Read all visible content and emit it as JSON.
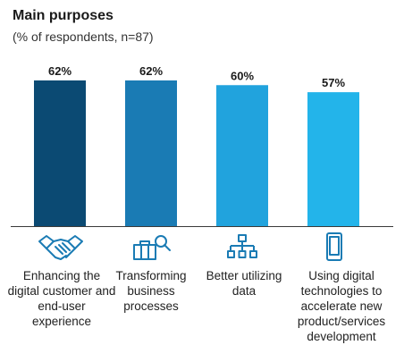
{
  "chart_data": {
    "type": "bar",
    "title": "Main purposes",
    "subtitle": "(% of respondents, n=87)",
    "categories": [
      "Enhancing the digital customer and end-user experience",
      "Transforming business processes",
      "Better utilizing data",
      "Using digital technologies to accelerate new product/services development"
    ],
    "values": [
      62,
      62,
      60,
      57
    ],
    "value_labels": [
      "62%",
      "62%",
      "60%",
      "57%"
    ],
    "colors": [
      "#0b4a73",
      "#1a7bb4",
      "#21a3dd",
      "#23b4ea"
    ],
    "ylim": [
      0,
      62
    ],
    "grid": false,
    "legend": "none"
  },
  "icons": [
    "handshake-icon",
    "briefcase-search-icon",
    "hierarchy-network-icon",
    "smartphone-icon"
  ],
  "icon_color": "#1a7bb4",
  "baseline_color": "#3a3a3a"
}
